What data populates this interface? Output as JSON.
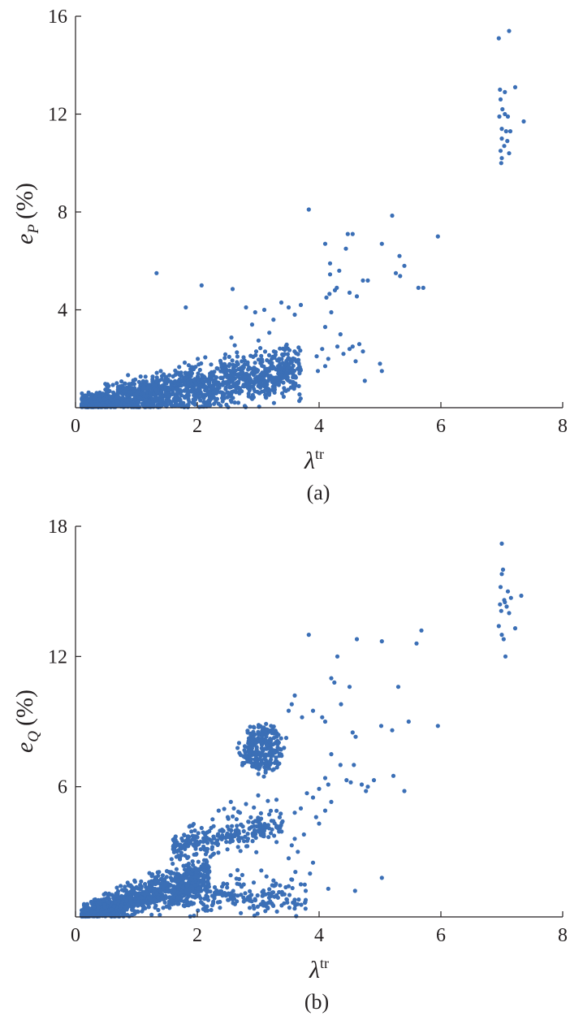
{
  "chart_data": [
    {
      "type": "scatter",
      "panel_label": "(a)",
      "ylabel": {
        "main": "e",
        "sub": "P",
        "unit": "(%)"
      },
      "xlabel": {
        "main": "λ",
        "sup": "tr"
      },
      "xlim": [
        0,
        8
      ],
      "ylim": [
        0,
        16
      ],
      "xticks": [
        "0",
        "2",
        "4",
        "6",
        "8"
      ],
      "yticks": [
        "4",
        "8",
        "12",
        "16"
      ],
      "grid": false,
      "color": "#3b6fb6",
      "clusters": [
        {
          "count": 1500,
          "xmin": 0.1,
          "xmax": 3.7,
          "yslope": 0.42,
          "yspread": 0.5,
          "note": "dense band"
        }
      ],
      "points": [
        [
          1.33,
          5.5
        ],
        [
          2.07,
          5.0
        ],
        [
          2.58,
          4.85
        ],
        [
          1.81,
          4.1
        ],
        [
          3.83,
          8.1
        ],
        [
          4.47,
          7.1
        ],
        [
          4.55,
          7.1
        ],
        [
          5.2,
          7.85
        ],
        [
          5.95,
          7.0
        ],
        [
          5.03,
          6.7
        ],
        [
          4.1,
          6.7
        ],
        [
          4.18,
          5.9
        ],
        [
          4.18,
          5.45
        ],
        [
          4.33,
          5.6
        ],
        [
          4.44,
          6.5
        ],
        [
          4.72,
          5.2
        ],
        [
          4.8,
          5.2
        ],
        [
          5.26,
          5.5
        ],
        [
          5.4,
          5.8
        ],
        [
          5.32,
          6.2
        ],
        [
          5.63,
          4.9
        ],
        [
          5.71,
          4.9
        ],
        [
          5.33,
          5.38
        ],
        [
          4.5,
          4.7
        ],
        [
          4.62,
          4.55
        ],
        [
          4.12,
          4.5
        ],
        [
          4.17,
          4.65
        ],
        [
          4.26,
          4.8
        ],
        [
          4.29,
          4.9
        ],
        [
          4.2,
          3.9
        ],
        [
          4.1,
          3.3
        ],
        [
          4.35,
          3.0
        ],
        [
          4.55,
          2.5
        ],
        [
          4.66,
          2.6
        ],
        [
          4.4,
          2.2
        ],
        [
          4.72,
          2.3
        ],
        [
          4.6,
          1.9
        ],
        [
          4.75,
          1.1
        ],
        [
          5.0,
          1.8
        ],
        [
          5.03,
          1.5
        ],
        [
          3.96,
          2.1
        ],
        [
          4.05,
          2.4
        ],
        [
          4.15,
          2.0
        ],
        [
          4.3,
          2.5
        ],
        [
          4.5,
          2.4
        ],
        [
          4.1,
          1.7
        ],
        [
          3.98,
          1.5
        ],
        [
          3.5,
          4.1
        ],
        [
          3.38,
          4.3
        ],
        [
          3.1,
          4.0
        ],
        [
          2.8,
          4.1
        ],
        [
          2.95,
          3.9
        ],
        [
          3.7,
          4.2
        ],
        [
          3.6,
          3.8
        ],
        [
          3.25,
          3.6
        ],
        [
          2.9,
          3.4
        ],
        [
          6.95,
          15.1
        ],
        [
          7.12,
          15.4
        ],
        [
          7.22,
          13.1
        ],
        [
          7.36,
          11.7
        ],
        [
          6.97,
          13.0
        ],
        [
          7.05,
          12.9
        ],
        [
          6.98,
          12.6
        ],
        [
          7.01,
          12.2
        ],
        [
          6.96,
          11.9
        ],
        [
          7.1,
          11.9
        ],
        [
          7.0,
          11.4
        ],
        [
          7.07,
          11.3
        ],
        [
          7.14,
          11.3
        ],
        [
          7.0,
          11.0
        ],
        [
          7.09,
          10.9
        ],
        [
          7.04,
          10.7
        ],
        [
          6.98,
          10.5
        ],
        [
          7.12,
          10.4
        ],
        [
          7.0,
          10.2
        ],
        [
          6.99,
          10.0
        ],
        [
          7.05,
          12.0
        ]
      ]
    },
    {
      "type": "scatter",
      "panel_label": "(b)",
      "ylabel": {
        "main": "e",
        "sub": "Q",
        "unit": "(%)"
      },
      "xlabel": {
        "main": "λ",
        "sup": "tr"
      },
      "xlim": [
        0,
        8
      ],
      "ylim": [
        0,
        18
      ],
      "xticks": [
        "0",
        "2",
        "4",
        "6",
        "8"
      ],
      "yticks": [
        "6",
        "12",
        "18"
      ],
      "grid": false,
      "color": "#3b6fb6",
      "clusters": [
        {
          "count": 1100,
          "xmin": 0.1,
          "xmax": 2.2,
          "yslope": 0.85,
          "yspread": 0.45,
          "note": "dense lower band"
        },
        {
          "count": 220,
          "xmin": 1.6,
          "xmax": 3.8,
          "ycenter": 1.0,
          "yspread": 0.45,
          "note": "flat tail"
        },
        {
          "count": 260,
          "xmin": 1.6,
          "xmax": 3.4,
          "yslope": 0.55,
          "yoffset": 2.4,
          "yspread": 0.35,
          "note": "middle band"
        },
        {
          "count": 230,
          "cx": 3.05,
          "cy": 7.8,
          "rx": 0.32,
          "ry": 1.1,
          "note": "upper cluster"
        }
      ],
      "points": [
        [
          3.83,
          13.0
        ],
        [
          4.3,
          12.0
        ],
        [
          4.62,
          12.8
        ],
        [
          5.03,
          12.7
        ],
        [
          5.6,
          12.6
        ],
        [
          5.68,
          13.2
        ],
        [
          4.2,
          11.0
        ],
        [
          4.25,
          10.8
        ],
        [
          4.5,
          10.6
        ],
        [
          4.36,
          9.8
        ],
        [
          3.9,
          9.5
        ],
        [
          4.05,
          9.2
        ],
        [
          4.1,
          9.0
        ],
        [
          3.55,
          9.8
        ],
        [
          3.6,
          10.2
        ],
        [
          3.72,
          9.2
        ],
        [
          3.5,
          9.5
        ],
        [
          5.3,
          10.6
        ],
        [
          5.02,
          8.8
        ],
        [
          5.2,
          8.6
        ],
        [
          5.47,
          9.0
        ],
        [
          5.95,
          8.8
        ],
        [
          4.55,
          8.5
        ],
        [
          4.6,
          8.3
        ],
        [
          4.2,
          7.5
        ],
        [
          4.35,
          7.0
        ],
        [
          4.57,
          7.0
        ],
        [
          5.22,
          6.5
        ],
        [
          4.45,
          6.3
        ],
        [
          4.52,
          6.2
        ],
        [
          4.7,
          6.1
        ],
        [
          4.8,
          6.0
        ],
        [
          4.9,
          6.3
        ],
        [
          4.77,
          5.8
        ],
        [
          4.1,
          6.4
        ],
        [
          4.15,
          6.1
        ],
        [
          4.0,
          5.9
        ],
        [
          3.8,
          5.7
        ],
        [
          3.9,
          5.5
        ],
        [
          4.2,
          5.3
        ],
        [
          3.7,
          5.0
        ],
        [
          3.6,
          4.8
        ],
        [
          4.1,
          4.9
        ],
        [
          3.95,
          4.6
        ],
        [
          3.4,
          4.4
        ],
        [
          3.3,
          4.2
        ],
        [
          5.4,
          5.8
        ],
        [
          4.0,
          4.3
        ],
        [
          3.75,
          3.8
        ],
        [
          3.6,
          3.6
        ],
        [
          3.55,
          3.3
        ],
        [
          3.65,
          3.0
        ],
        [
          3.5,
          2.7
        ],
        [
          3.9,
          2.5
        ],
        [
          3.85,
          2.0
        ],
        [
          3.7,
          1.5
        ],
        [
          4.15,
          1.3
        ],
        [
          4.59,
          1.2
        ],
        [
          5.03,
          1.8
        ],
        [
          3.3,
          5.4
        ],
        [
          3.0,
          5.6
        ],
        [
          2.8,
          5.2
        ],
        [
          2.6,
          5.0
        ],
        [
          2.7,
          4.8
        ],
        [
          2.5,
          4.6
        ],
        [
          2.35,
          4.9
        ],
        [
          2.55,
          5.3
        ],
        [
          2.25,
          4.5
        ],
        [
          7.0,
          17.2
        ],
        [
          7.02,
          16.0
        ],
        [
          7.0,
          15.8
        ],
        [
          6.98,
          15.2
        ],
        [
          7.1,
          15.0
        ],
        [
          7.32,
          14.8
        ],
        [
          7.15,
          14.7
        ],
        [
          7.05,
          14.5
        ],
        [
          6.97,
          14.4
        ],
        [
          7.08,
          14.3
        ],
        [
          6.99,
          14.1
        ],
        [
          7.12,
          14.0
        ],
        [
          7.04,
          14.6
        ],
        [
          6.95,
          13.4
        ],
        [
          7.22,
          13.3
        ],
        [
          7.0,
          13.0
        ],
        [
          7.03,
          12.8
        ],
        [
          7.06,
          12.0
        ]
      ]
    }
  ]
}
